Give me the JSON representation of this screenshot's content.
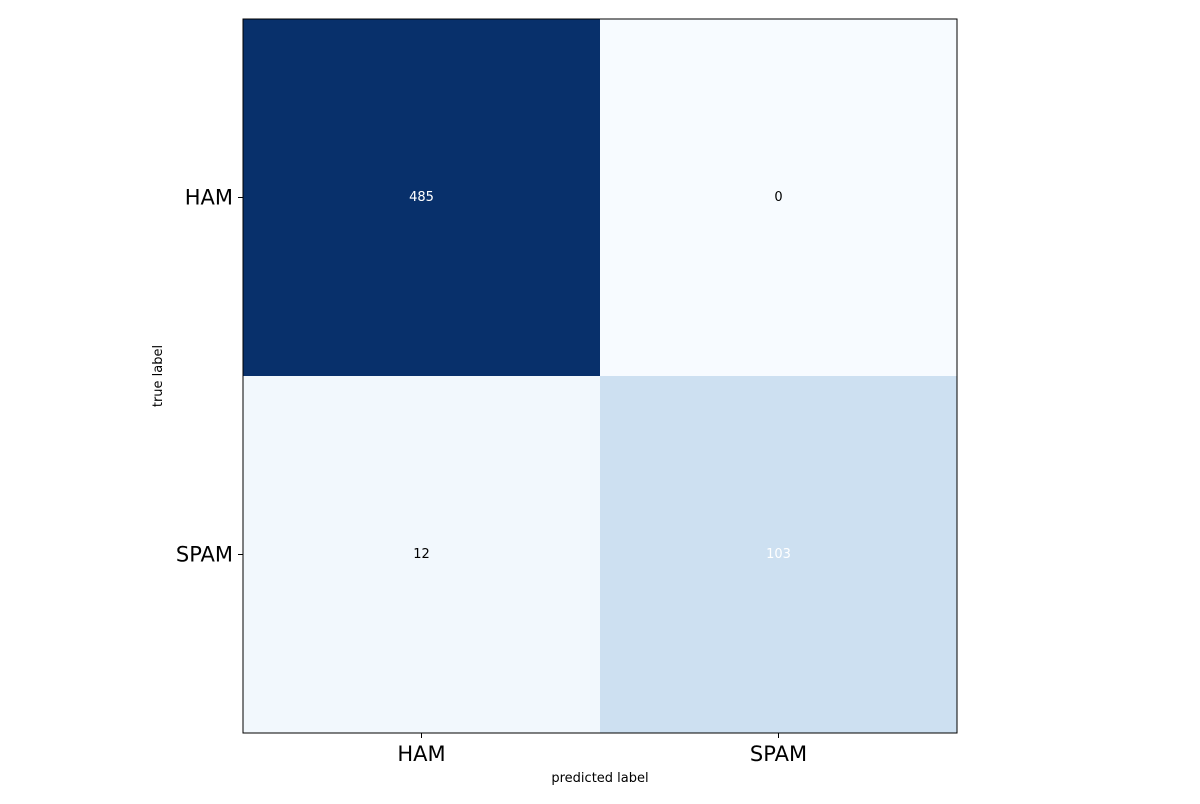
{
  "chart_data": {
    "type": "heatmap",
    "title": "",
    "xlabel": "predicted label",
    "ylabel": "true label",
    "x_categories": [
      "HAM",
      "SPAM"
    ],
    "y_categories": [
      "HAM",
      "SPAM"
    ],
    "matrix": [
      [
        485,
        0
      ],
      [
        12,
        103
      ]
    ],
    "colormap": "Blues",
    "grid": false,
    "colorbar": false,
    "colors": {
      "low": "#f7fbff",
      "high": "#08306b",
      "text_dark_bg": "#ffffff",
      "text_light_bg": "#000000",
      "frame": "#000000"
    }
  }
}
